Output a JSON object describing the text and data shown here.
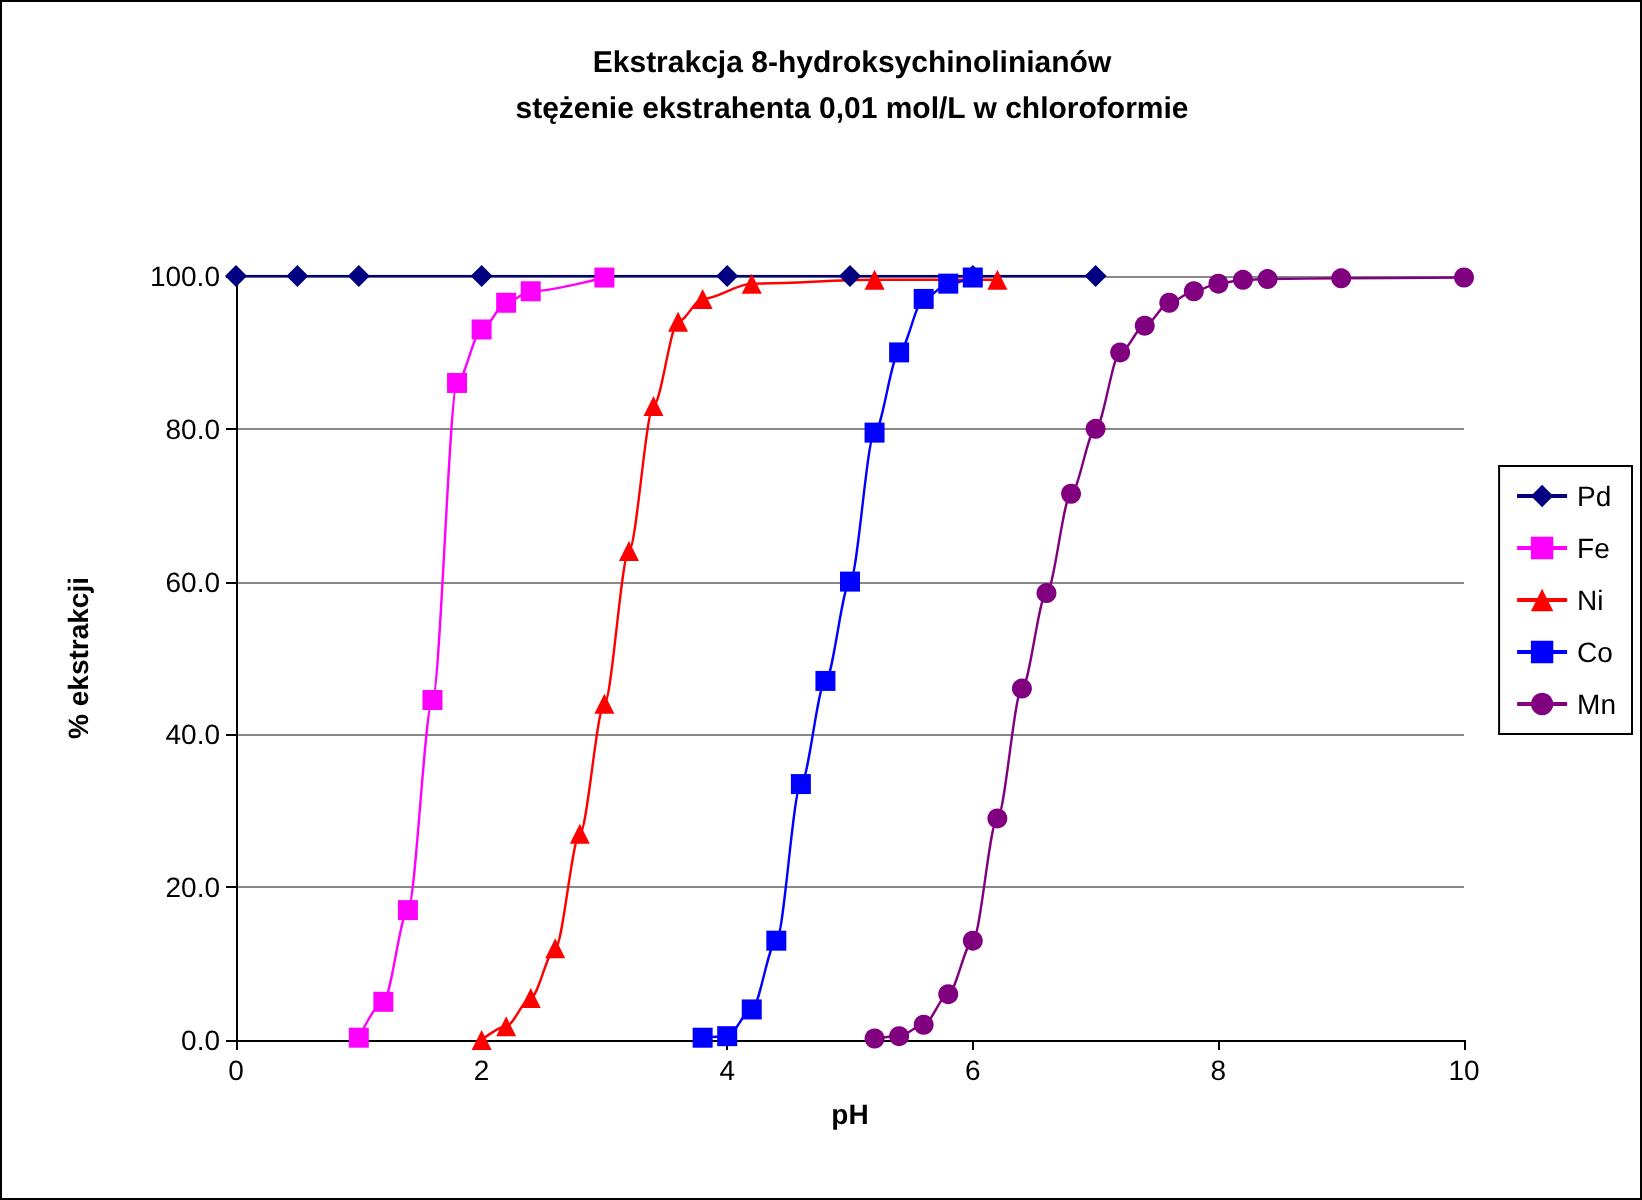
{
  "chart_data": {
    "type": "line",
    "title": "Ekstrakcja 8-hydroksychinolinianów",
    "subtitle": "stężenie ekstrahenta 0,01 mol/L w chloroformie",
    "xlabel": "pH",
    "ylabel": "% ekstrakcji",
    "xlim": [
      0,
      10
    ],
    "xticks": [
      0,
      2,
      4,
      6,
      8,
      10
    ],
    "ylim": [
      0,
      100
    ],
    "yticks": [
      {
        "value": 0,
        "label": "0.0"
      },
      {
        "value": 20,
        "label": "20.0"
      },
      {
        "value": 40,
        "label": "40.0"
      },
      {
        "value": 60,
        "label": "60.0"
      },
      {
        "value": 80,
        "label": "80.0"
      },
      {
        "value": 100,
        "label": "100.0"
      }
    ],
    "grid": "y",
    "legend": "right",
    "series": [
      {
        "name": "Pd",
        "color": "#000080",
        "marker": "diamond",
        "x": [
          0,
          0.5,
          1,
          2,
          4,
          5,
          6,
          7
        ],
        "values": [
          100,
          100,
          100,
          100,
          100,
          100,
          100,
          100
        ]
      },
      {
        "name": "Fe",
        "color": "#ff00ff",
        "marker": "square",
        "x": [
          1.0,
          1.2,
          1.4,
          1.6,
          1.8,
          2.0,
          2.2,
          2.4,
          3.0
        ],
        "values": [
          0.3,
          5,
          17,
          44.5,
          86,
          93,
          96.5,
          98,
          99.8
        ]
      },
      {
        "name": "Ni",
        "color": "#ff0000",
        "marker": "triangle",
        "x": [
          2.0,
          2.2,
          2.4,
          2.6,
          2.8,
          3.0,
          3.2,
          3.4,
          3.6,
          3.8,
          4.2,
          5.2,
          6.2
        ],
        "values": [
          0,
          1.8,
          5.5,
          12,
          27,
          44,
          64,
          83,
          94,
          97,
          99,
          99.5,
          99.5
        ]
      },
      {
        "name": "Co",
        "color": "#0000ff",
        "marker": "square",
        "x": [
          3.8,
          4.0,
          4.2,
          4.4,
          4.6,
          4.8,
          5.0,
          5.2,
          5.4,
          5.6,
          5.8,
          6.0
        ],
        "values": [
          0.3,
          0.5,
          4,
          13,
          33.5,
          47,
          60,
          79.5,
          90,
          97,
          99,
          99.8
        ]
      },
      {
        "name": "Mn",
        "color": "#800080",
        "marker": "circle",
        "x": [
          5.2,
          5.4,
          5.6,
          5.8,
          6.0,
          6.2,
          6.4,
          6.6,
          6.8,
          7.0,
          7.2,
          7.4,
          7.6,
          7.8,
          8.0,
          8.2,
          8.4,
          9.0,
          10
        ],
        "values": [
          0.2,
          0.5,
          2,
          6,
          13,
          29,
          46,
          58.5,
          71.5,
          80,
          90,
          93.5,
          96.5,
          98,
          99,
          99.5,
          99.6,
          99.7,
          99.8
        ]
      }
    ]
  }
}
